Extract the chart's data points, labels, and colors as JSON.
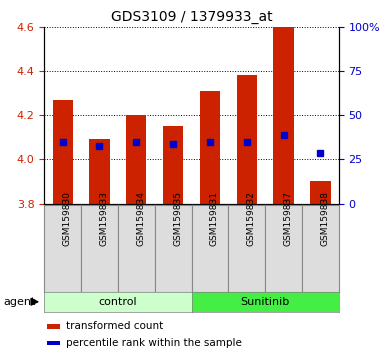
{
  "title": "GDS3109 / 1379933_at",
  "samples": [
    "GSM159830",
    "GSM159833",
    "GSM159834",
    "GSM159835",
    "GSM159831",
    "GSM159832",
    "GSM159837",
    "GSM159838"
  ],
  "bar_values": [
    4.27,
    4.09,
    4.2,
    4.15,
    4.31,
    4.38,
    4.6,
    3.9
  ],
  "bar_base": 3.8,
  "blue_values": [
    4.08,
    4.06,
    4.08,
    4.07,
    4.08,
    4.08,
    4.11,
    4.03
  ],
  "ylim": [
    3.8,
    4.6
  ],
  "yticks_left": [
    3.8,
    4.0,
    4.2,
    4.4,
    4.6
  ],
  "yticks_right": [
    0,
    25,
    50,
    75,
    100
  ],
  "bar_color": "#cc2200",
  "blue_color": "#0000cc",
  "group_labels": [
    "control",
    "Sunitinib"
  ],
  "control_indices": [
    0,
    1,
    2,
    3
  ],
  "sunitinib_indices": [
    4,
    5,
    6,
    7
  ],
  "group_color_control": "#ccffcc",
  "group_color_sunitinib": "#44ee44",
  "agent_label": "agent",
  "legend1": "transformed count",
  "legend2": "percentile rank within the sample",
  "tick_label_color_left": "#cc2200",
  "tick_label_color_right": "#0000cc",
  "bar_width": 0.55,
  "sample_box_color": "#dddddd",
  "sample_box_edge": "#888888"
}
